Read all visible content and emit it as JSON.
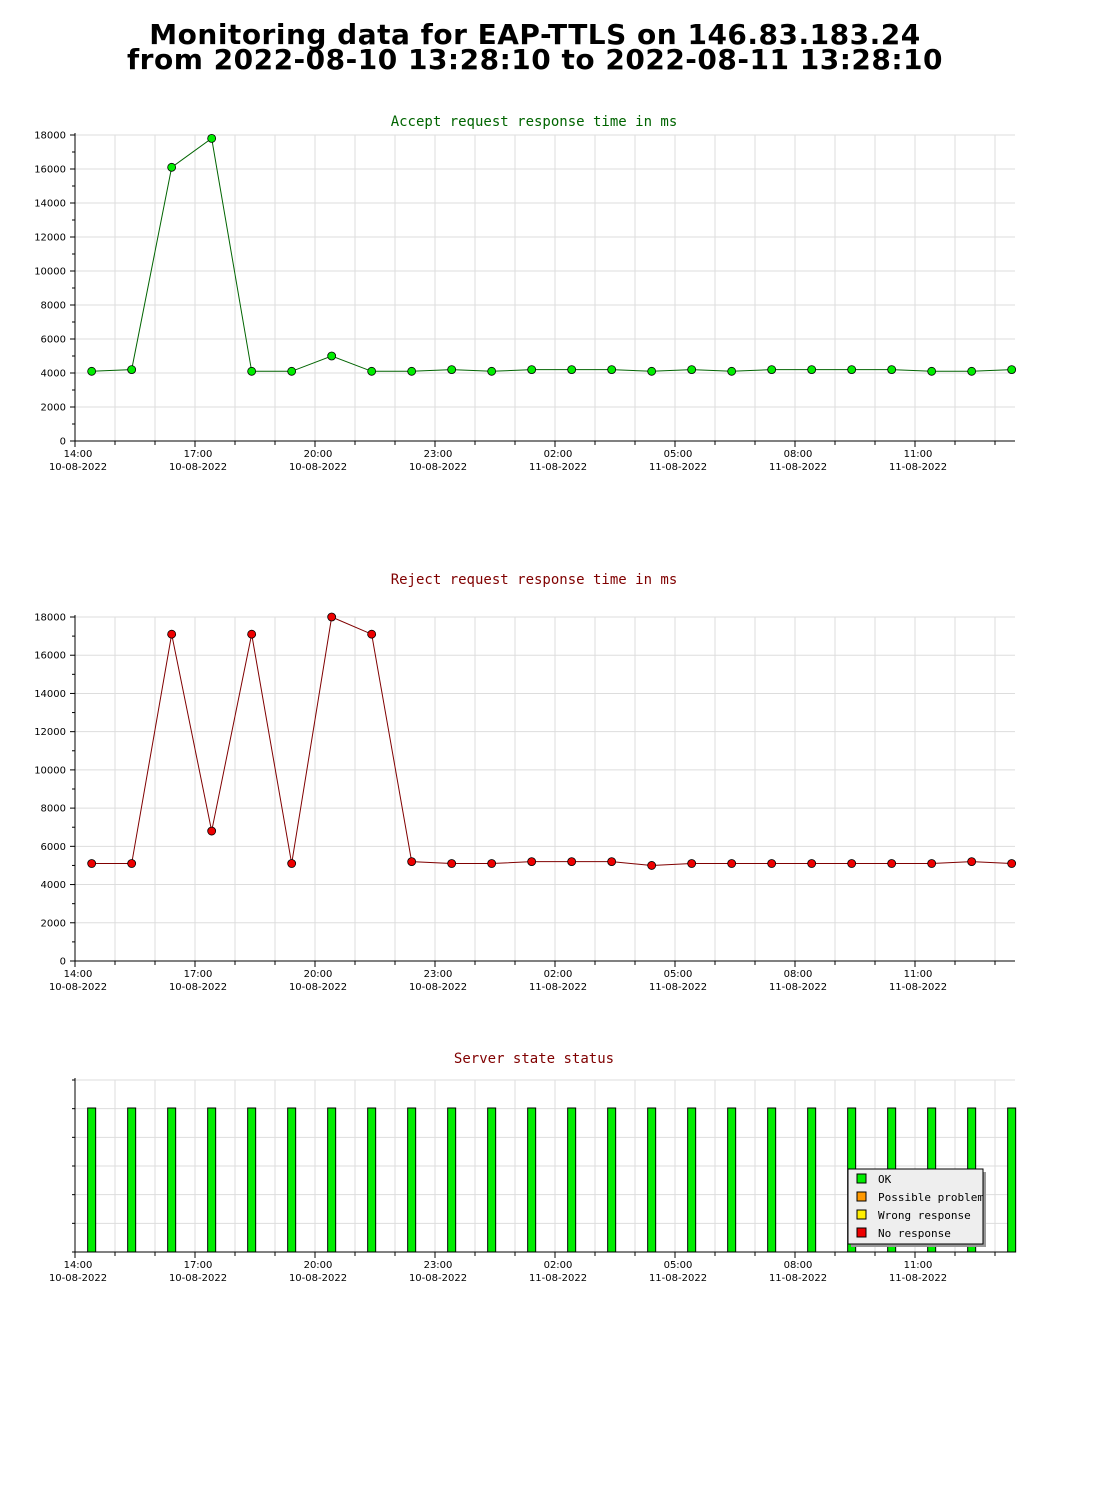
{
  "page": {
    "title_line1": "Monitoring data for EAP-TTLS on 146.83.183.24",
    "title_line2": "from 2022-08-10 13:28:10 to 2022-08-11 13:28:10"
  },
  "colors": {
    "accept_line": "#006400",
    "accept_marker": "#00ee00",
    "reject_line": "#800000",
    "reject_marker": "#ee0000",
    "ok": "#00ee00",
    "possible_problem": "#ff9900",
    "wrong_response": "#ffee00",
    "no_response": "#ee0000",
    "grid": "#dddddd"
  },
  "chart_data": [
    {
      "type": "line",
      "title": "Accept request response time in ms",
      "x_ticks": [
        {
          "time": "14:00",
          "date": "10-08-2022"
        },
        {
          "time": "17:00",
          "date": "10-08-2022"
        },
        {
          "time": "20:00",
          "date": "10-08-2022"
        },
        {
          "time": "23:00",
          "date": "10-08-2022"
        },
        {
          "time": "02:00",
          "date": "11-08-2022"
        },
        {
          "time": "05:00",
          "date": "11-08-2022"
        },
        {
          "time": "08:00",
          "date": "11-08-2022"
        },
        {
          "time": "11:00",
          "date": "11-08-2022"
        }
      ],
      "x_range": [
        "2022-08-10 14:00",
        "2022-08-11 13:30"
      ],
      "y_ticks": [
        "0",
        "2000",
        "4000",
        "6000",
        "8000",
        "10000",
        "12000",
        "14000",
        "16000",
        "18000"
      ],
      "ylim": [
        0,
        18000
      ],
      "grid": true,
      "x": [
        "2022-08-10 14:25",
        "2022-08-10 15:25",
        "2022-08-10 16:25",
        "2022-08-10 17:25",
        "2022-08-10 18:25",
        "2022-08-10 19:25",
        "2022-08-10 20:25",
        "2022-08-10 21:25",
        "2022-08-10 22:25",
        "2022-08-10 23:25",
        "2022-08-11 00:25",
        "2022-08-11 01:25",
        "2022-08-11 02:25",
        "2022-08-11 03:25",
        "2022-08-11 04:25",
        "2022-08-11 05:25",
        "2022-08-11 06:25",
        "2022-08-11 07:25",
        "2022-08-11 08:25",
        "2022-08-11 09:25",
        "2022-08-11 10:25",
        "2022-08-11 11:25",
        "2022-08-11 12:25",
        "2022-08-11 13:25"
      ],
      "values": [
        4100,
        4200,
        16100,
        17800,
        4100,
        4100,
        5000,
        4100,
        4100,
        4200,
        4100,
        4200,
        4200,
        4200,
        4100,
        4200,
        4100,
        4200,
        4200,
        4200,
        4200,
        4100,
        4100,
        4200
      ]
    },
    {
      "type": "line",
      "title": "Reject request response time in ms",
      "x_ticks": [
        {
          "time": "14:00",
          "date": "10-08-2022"
        },
        {
          "time": "17:00",
          "date": "10-08-2022"
        },
        {
          "time": "20:00",
          "date": "10-08-2022"
        },
        {
          "time": "23:00",
          "date": "10-08-2022"
        },
        {
          "time": "02:00",
          "date": "11-08-2022"
        },
        {
          "time": "05:00",
          "date": "11-08-2022"
        },
        {
          "time": "08:00",
          "date": "11-08-2022"
        },
        {
          "time": "11:00",
          "date": "11-08-2022"
        }
      ],
      "x_range": [
        "2022-08-10 14:00",
        "2022-08-11 13:30"
      ],
      "y_ticks": [
        "0",
        "2000",
        "4000",
        "6000",
        "8000",
        "10000",
        "12000",
        "14000",
        "16000",
        "18000"
      ],
      "ylim": [
        0,
        18000
      ],
      "grid": true,
      "x": [
        "2022-08-10 14:25",
        "2022-08-10 15:25",
        "2022-08-10 16:25",
        "2022-08-10 17:25",
        "2022-08-10 18:25",
        "2022-08-10 19:25",
        "2022-08-10 20:25",
        "2022-08-10 21:25",
        "2022-08-10 22:25",
        "2022-08-10 23:25",
        "2022-08-11 00:25",
        "2022-08-11 01:25",
        "2022-08-11 02:25",
        "2022-08-11 03:25",
        "2022-08-11 04:25",
        "2022-08-11 05:25",
        "2022-08-11 06:25",
        "2022-08-11 07:25",
        "2022-08-11 08:25",
        "2022-08-11 09:25",
        "2022-08-11 10:25",
        "2022-08-11 11:25",
        "2022-08-11 12:25",
        "2022-08-11 13:25"
      ],
      "values": [
        5100,
        5100,
        17100,
        6800,
        17100,
        5100,
        18000,
        17100,
        5200,
        5100,
        5100,
        5200,
        5200,
        5200,
        5000,
        5100,
        5100,
        5100,
        5100,
        5100,
        5100,
        5100,
        5200,
        5100
      ]
    },
    {
      "type": "bar",
      "title": "Server state status",
      "x_ticks": [
        {
          "time": "14:00",
          "date": "10-08-2022"
        },
        {
          "time": "17:00",
          "date": "10-08-2022"
        },
        {
          "time": "20:00",
          "date": "10-08-2022"
        },
        {
          "time": "23:00",
          "date": "10-08-2022"
        },
        {
          "time": "02:00",
          "date": "11-08-2022"
        },
        {
          "time": "05:00",
          "date": "11-08-2022"
        },
        {
          "time": "08:00",
          "date": "11-08-2022"
        },
        {
          "time": "11:00",
          "date": "11-08-2022"
        }
      ],
      "x_range": [
        "2022-08-10 14:00",
        "2022-08-11 13:30"
      ],
      "grid": true,
      "x": [
        "2022-08-10 14:25",
        "2022-08-10 15:25",
        "2022-08-10 16:25",
        "2022-08-10 17:25",
        "2022-08-10 18:25",
        "2022-08-10 19:25",
        "2022-08-10 20:25",
        "2022-08-10 21:25",
        "2022-08-10 22:25",
        "2022-08-10 23:25",
        "2022-08-11 00:25",
        "2022-08-11 01:25",
        "2022-08-11 02:25",
        "2022-08-11 03:25",
        "2022-08-11 04:25",
        "2022-08-11 05:25",
        "2022-08-11 06:25",
        "2022-08-11 07:25",
        "2022-08-11 08:25",
        "2022-08-11 09:25",
        "2022-08-11 10:25",
        "2022-08-11 11:25",
        "2022-08-11 12:25",
        "2022-08-11 13:25"
      ],
      "states": [
        "OK",
        "OK",
        "OK",
        "OK",
        "OK",
        "OK",
        "OK",
        "OK",
        "OK",
        "OK",
        "OK",
        "OK",
        "OK",
        "OK",
        "OK",
        "OK",
        "OK",
        "OK",
        "OK",
        "OK",
        "OK",
        "OK",
        "OK",
        "OK"
      ],
      "legend_position": "bottom-right",
      "legend": [
        {
          "label": "OK",
          "color": "#00ee00"
        },
        {
          "label": "Possible problem",
          "color": "#ff9900"
        },
        {
          "label": "Wrong response",
          "color": "#ffee00"
        },
        {
          "label": "No response",
          "color": "#ee0000"
        }
      ]
    }
  ]
}
